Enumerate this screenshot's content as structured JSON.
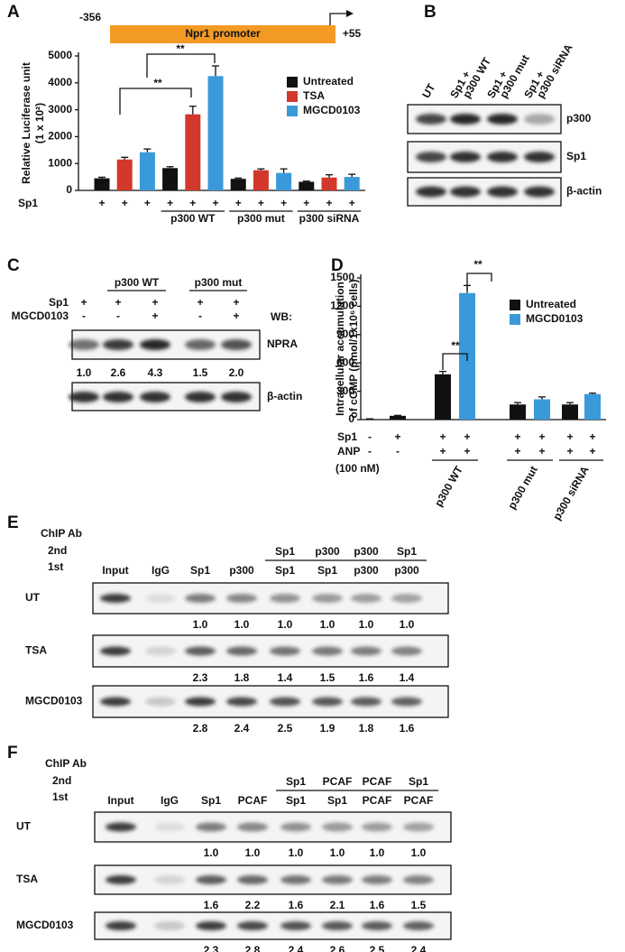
{
  "chart_data": [
    {
      "type": "bar",
      "ylabel": [
        "Relative Luciferase unit",
        "(1 x 10²)"
      ],
      "promoter": {
        "start": "-356",
        "label": "Npr1 promoter",
        "end": "+55"
      },
      "categories": [
        null,
        "p300 WT",
        "p300 mut",
        "p300 siRNA"
      ],
      "series": [
        {
          "name": "Untreated",
          "color": "#111111",
          "values": [
            450,
            830,
            430,
            320
          ],
          "errors": [
            40,
            50,
            30,
            25
          ]
        },
        {
          "name": "TSA",
          "color": "#d2382b",
          "values": [
            1150,
            2830,
            750,
            480
          ],
          "errors": [
            80,
            300,
            50,
            100
          ]
        },
        {
          "name": "MGCD0103",
          "color": "#3a9ad9",
          "values": [
            1420,
            4250,
            650,
            500
          ],
          "errors": [
            120,
            380,
            150,
            100
          ]
        }
      ],
      "ylim": [
        0,
        5000
      ],
      "yticks": [
        0,
        1000,
        2000,
        3000,
        4000,
        5000
      ],
      "row_label": "Sp1",
      "row_signs": [
        "+",
        "+",
        "+",
        "+",
        "+",
        "+",
        "+",
        "+",
        "+",
        "+",
        "+",
        "+"
      ],
      "annotations": [
        "**",
        "**"
      ]
    },
    {
      "type": "bar",
      "ylabel": [
        "Intracellular accumulation",
        "of cGMP  (pmol/1x10⁶ cells)"
      ],
      "categories": [
        null,
        null,
        "p300 WT",
        "p300 mut",
        "p300 siRNA"
      ],
      "series": [
        {
          "name": "Untreated",
          "color": "#111111",
          "values": [
            5,
            40,
            480,
            160,
            160
          ],
          "errors": [
            3,
            5,
            30,
            20,
            20
          ]
        },
        {
          "name": "MGCD0103",
          "color": "#3a9ad9",
          "values": [
            null,
            null,
            1340,
            215,
            270
          ],
          "errors": [
            null,
            null,
            80,
            25,
            10
          ]
        }
      ],
      "ylim": [
        0,
        1500
      ],
      "yticks": [
        0,
        300,
        600,
        900,
        1200,
        1500
      ],
      "rows": [
        {
          "label": "Sp1",
          "signs": [
            "-",
            "+",
            "+",
            "+",
            "+",
            "+",
            "+",
            "+"
          ]
        },
        {
          "label": "ANP",
          "signs": [
            "-",
            "-",
            "+",
            "+",
            "+",
            "+",
            "+",
            "+"
          ]
        }
      ],
      "note": "(100 nM)",
      "annotations": [
        "**",
        "**"
      ]
    }
  ],
  "panel_labels": [
    "A",
    "B",
    "C",
    "D",
    "E",
    "F"
  ],
  "panel_b": {
    "lanes": [
      [
        "UT"
      ],
      [
        "Sp1 +",
        "p300 WT"
      ],
      [
        "Sp1 +",
        "p300 mut"
      ],
      [
        "Sp1 +",
        "p300 siRNA"
      ]
    ],
    "rows": [
      "p300",
      "Sp1",
      "β-actin"
    ]
  },
  "panel_c": {
    "groups": [
      "p300 WT",
      "p300 mut"
    ],
    "rows": [
      {
        "label": "Sp1",
        "signs": [
          "+",
          "+",
          "+",
          "+",
          "+"
        ]
      },
      {
        "label": "MGCD0103",
        "signs": [
          "-",
          "-",
          "+",
          "-",
          "+"
        ]
      }
    ],
    "wb": "WB:",
    "blots": [
      "NPRA",
      "β-actin"
    ],
    "quant": [
      "1.0",
      "2.6",
      "4.3",
      "1.5",
      "2.0"
    ]
  },
  "panel_e": {
    "title": "ChIP Ab",
    "second": "2nd",
    "first": "1st",
    "headers": [
      "Input",
      "IgG",
      "Sp1",
      "p300"
    ],
    "second_row": [
      "Sp1",
      "p300",
      "p300",
      "Sp1"
    ],
    "first_row": [
      "Sp1",
      "Sp1",
      "p300",
      "p300"
    ],
    "rows": [
      {
        "label": "UT",
        "quant": [
          "1.0",
          "1.0",
          "1.0",
          "1.0",
          "1.0",
          "1.0"
        ]
      },
      {
        "label": "TSA",
        "quant": [
          "2.3",
          "1.8",
          "1.4",
          "1.5",
          "1.6",
          "1.4"
        ]
      },
      {
        "label": "MGCD0103",
        "quant": [
          "2.8",
          "2.4",
          "2.5",
          "1.9",
          "1.8",
          "1.6"
        ]
      }
    ]
  },
  "panel_f": {
    "title": "ChIP Ab",
    "second": "2nd",
    "first": "1st",
    "headers": [
      "Input",
      "IgG",
      "Sp1",
      "PCAF"
    ],
    "second_row": [
      "Sp1",
      "PCAF",
      "PCAF",
      "Sp1"
    ],
    "first_row": [
      "Sp1",
      "Sp1",
      "PCAF",
      "PCAF"
    ],
    "rows": [
      {
        "label": "UT",
        "quant": [
          "1.0",
          "1.0",
          "1.0",
          "1.0",
          "1.0",
          "1.0"
        ]
      },
      {
        "label": "TSA",
        "quant": [
          "1.6",
          "2.2",
          "1.6",
          "2.1",
          "1.6",
          "1.5"
        ]
      },
      {
        "label": "MGCD0103",
        "quant": [
          "2.3",
          "2.8",
          "2.4",
          "2.6",
          "2.5",
          "2.4"
        ]
      }
    ]
  }
}
